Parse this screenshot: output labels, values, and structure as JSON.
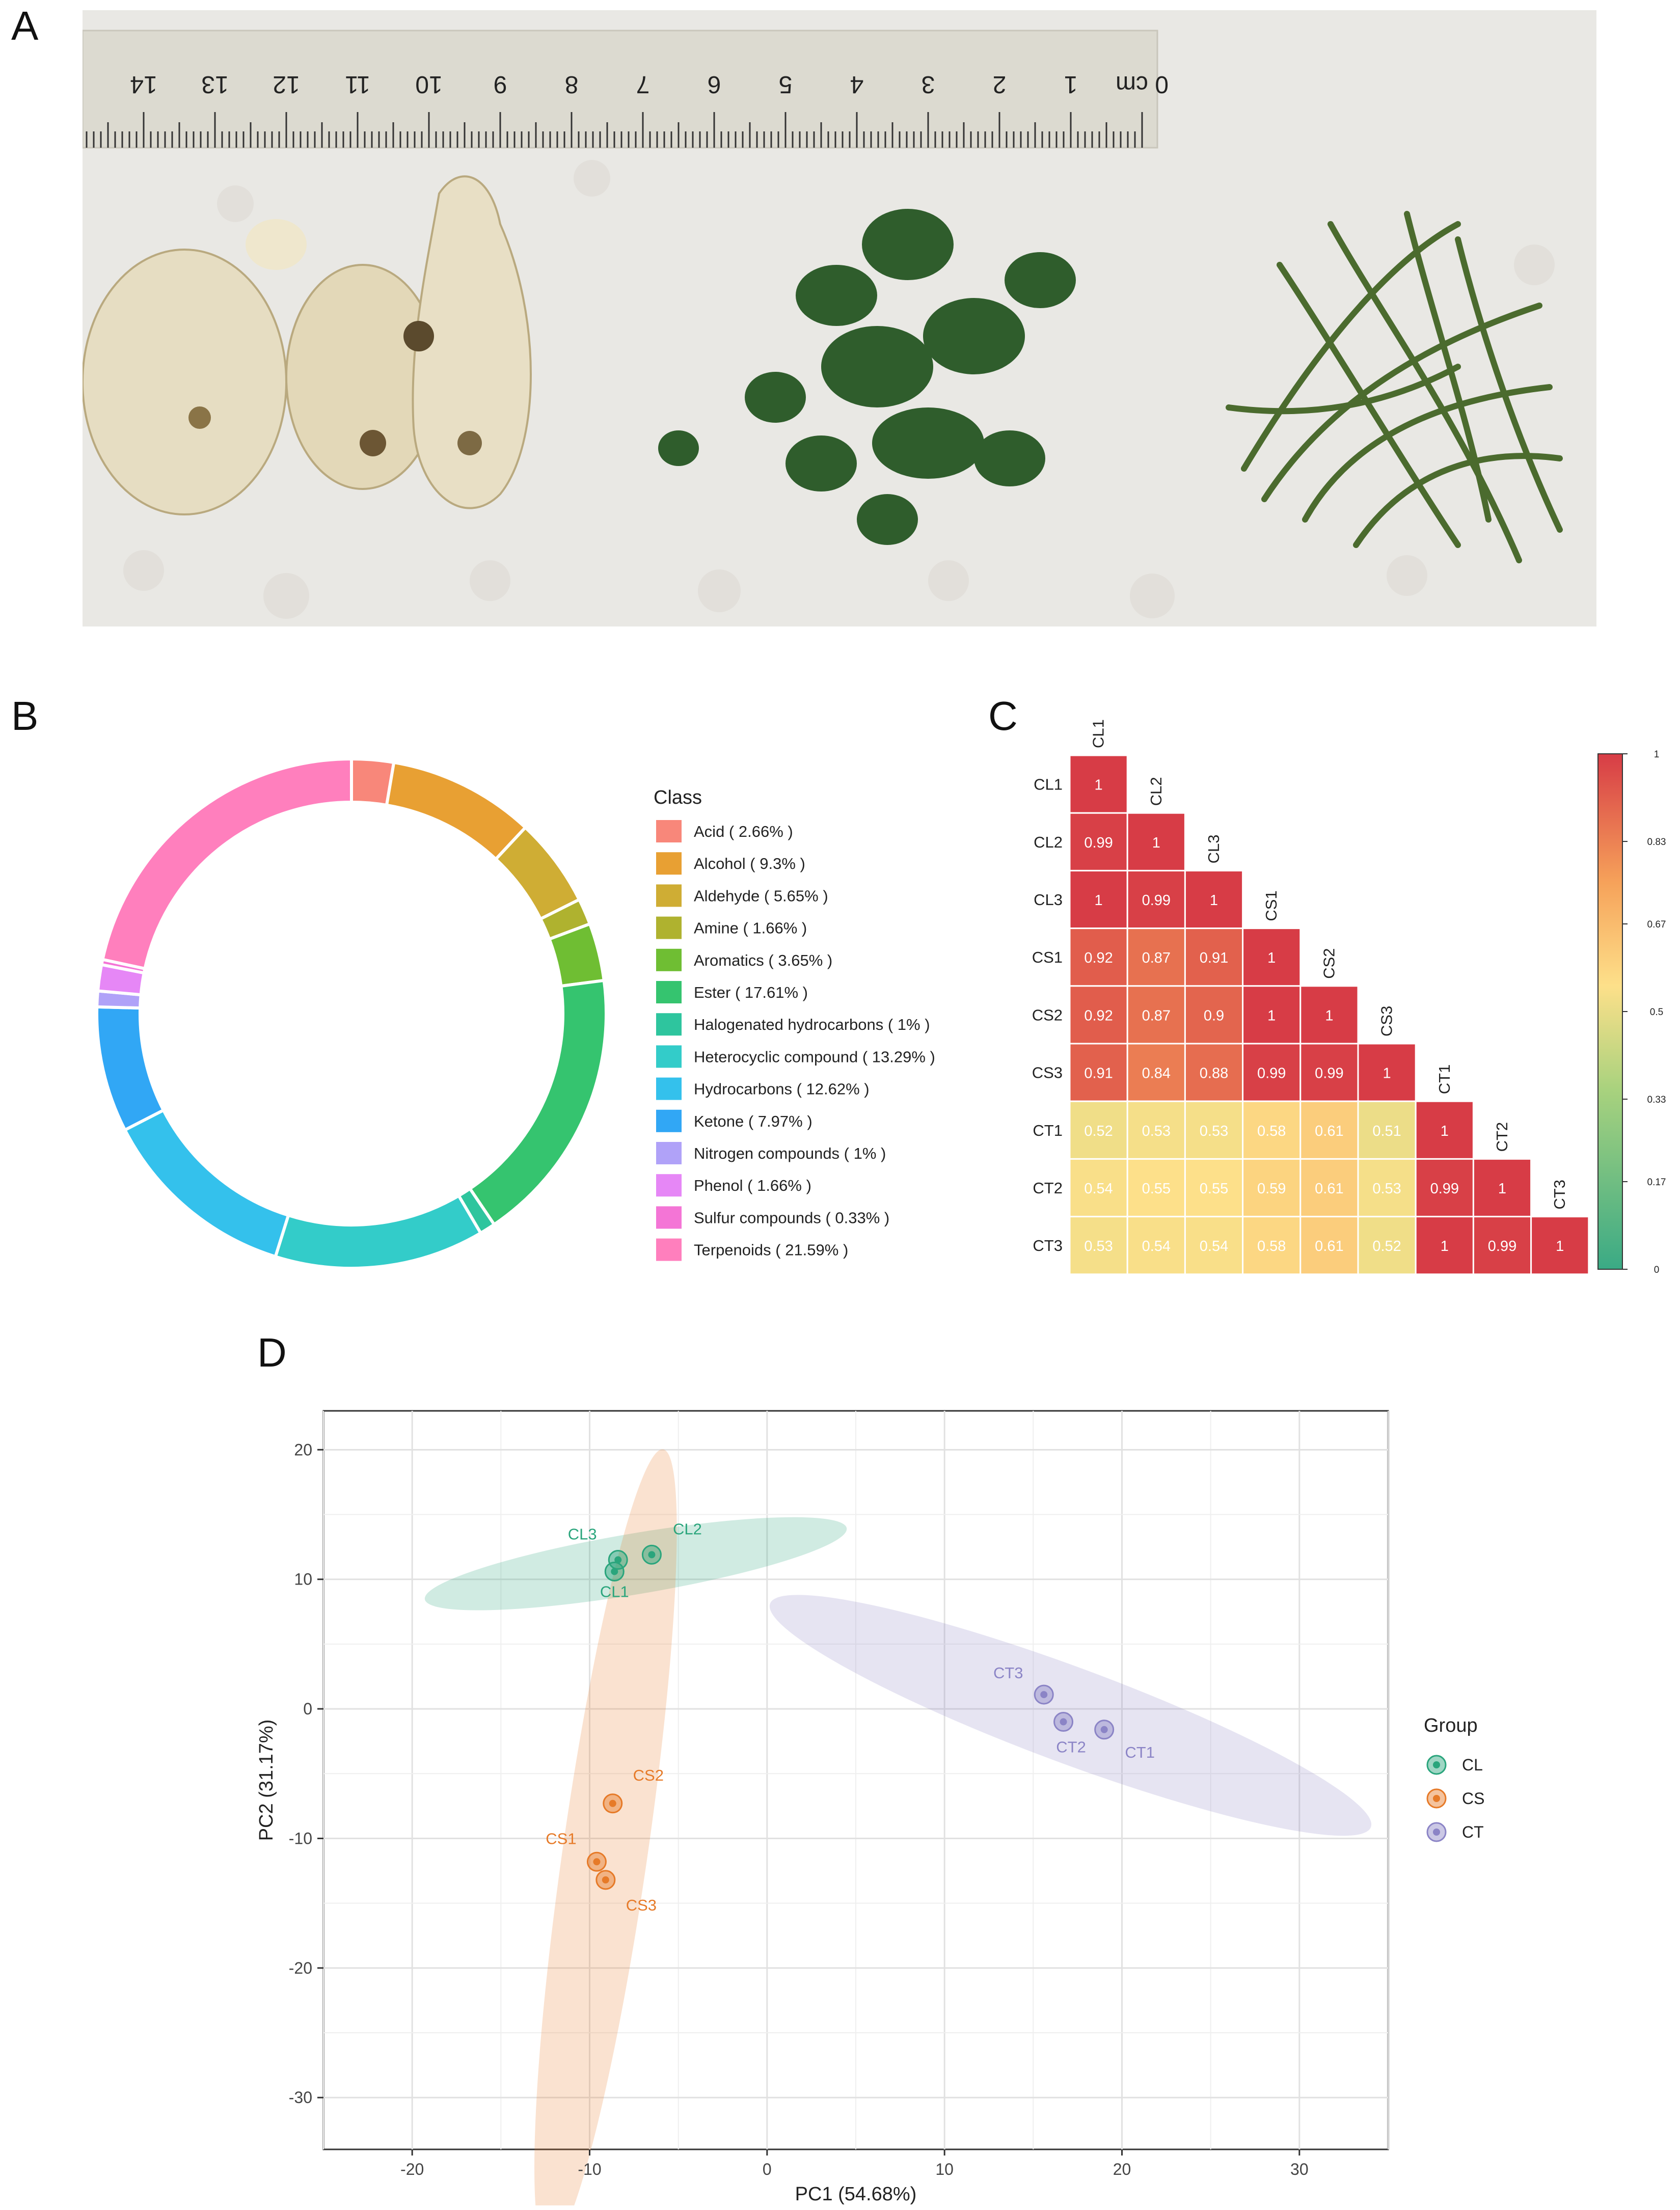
{
  "panels": {
    "a": "A",
    "b": "B",
    "c": "C",
    "d": "D"
  },
  "photo": {
    "ruler_ticks": [
      "0 cm",
      "1",
      "2",
      "3",
      "4",
      "5",
      "6",
      "7",
      "8",
      "9",
      "10",
      "11",
      "12",
      "13",
      "14"
    ],
    "colors": {
      "background": "#e9e8e4",
      "ruler": "#dcdad0",
      "tuber": "#e6ddc2",
      "leaf": "#2f5d2c",
      "stem": "#4b6b2e"
    }
  },
  "chart_data": [
    {
      "type": "pie",
      "variant": "donut",
      "legend_title": "Class",
      "legend_position": "right",
      "categories": [
        "Acid",
        "Alcohol",
        "Aldehyde",
        "Amine",
        "Aromatics",
        "Ester",
        "Halogenated hydrocarbons",
        "Heterocyclic compound",
        "Hydrocarbons",
        "Ketone",
        "Nitrogen compounds",
        "Phenol",
        "Sulfur compounds",
        "Terpenoids"
      ],
      "legend_labels": [
        "Acid ( 2.66% )",
        "Alcohol ( 9.3% )",
        "Aldehyde ( 5.65% )",
        "Amine ( 1.66% )",
        "Aromatics ( 3.65% )",
        "Ester ( 17.61% )",
        "Halogenated hydrocarbons ( 1% )",
        "Heterocyclic compound ( 13.29% )",
        "Hydrocarbons ( 12.62% )",
        "Ketone ( 7.97% )",
        "Nitrogen compounds ( 1% )",
        "Phenol ( 1.66% )",
        "Sulfur compounds ( 0.33% )",
        "Terpenoids ( 21.59% )"
      ],
      "values": [
        2.66,
        9.3,
        5.65,
        1.66,
        3.65,
        17.61,
        1,
        13.29,
        12.62,
        7.97,
        1,
        1.66,
        0.33,
        21.59
      ],
      "colors": [
        "#f8877a",
        "#e8a033",
        "#cfad34",
        "#afb22f",
        "#6fbe33",
        "#35c46f",
        "#2ec59e",
        "#33ccc9",
        "#34c1ec",
        "#31a7f5",
        "#b0a2f8",
        "#e687f6",
        "#f475d6",
        "#ff7fbd"
      ]
    },
    {
      "type": "heatmap",
      "variant": "lower-triangle correlation",
      "labels": [
        "CL1",
        "CL2",
        "CL3",
        "CS1",
        "CS2",
        "CS3",
        "CT1",
        "CT2",
        "CT3"
      ],
      "matrix": [
        [
          1
        ],
        [
          0.99,
          1
        ],
        [
          1,
          0.99,
          1
        ],
        [
          0.92,
          0.87,
          0.91,
          1
        ],
        [
          0.92,
          0.87,
          0.9,
          1,
          1
        ],
        [
          0.91,
          0.84,
          0.88,
          0.99,
          0.99,
          1
        ],
        [
          0.52,
          0.53,
          0.53,
          0.58,
          0.61,
          0.51,
          1
        ],
        [
          0.54,
          0.55,
          0.55,
          0.59,
          0.61,
          0.53,
          0.99,
          1
        ],
        [
          0.53,
          0.54,
          0.54,
          0.58,
          0.61,
          0.52,
          1,
          0.99,
          1
        ]
      ],
      "colorbar_ticks": [
        "1",
        "0.83",
        "0.67",
        "0.5",
        "0.33",
        "0.17",
        "0"
      ],
      "colorbar_range": [
        0,
        1
      ],
      "colors": {
        "high": "#d73c46",
        "mid_high": "#f07048",
        "mid": "#fde08a",
        "low": "#3aaa85"
      }
    },
    {
      "type": "scatter",
      "xlabel": "PC1 (54.68%)",
      "ylabel": "PC2 (31.17%)",
      "xlim": [
        -25,
        35
      ],
      "ylim": [
        -34,
        23
      ],
      "xticks": [
        -20,
        -10,
        0,
        10,
        20,
        30
      ],
      "yticks": [
        -30,
        -20,
        -10,
        0,
        10,
        20
      ],
      "xtick_labels": [
        "-20",
        "-10",
        "0",
        "10",
        "20",
        "30"
      ],
      "ytick_labels": [
        "-30",
        "-20",
        "-10",
        "0",
        "10",
        "20"
      ],
      "grid": true,
      "legend_title": "Group",
      "legend_position": "right",
      "series": [
        {
          "name": "CL",
          "color": "#2aa57c",
          "points": [
            {
              "label": "CL1",
              "x": -8.6,
              "y": 10.6
            },
            {
              "label": "CL2",
              "x": -6.5,
              "y": 11.9
            },
            {
              "label": "CL3",
              "x": -8.4,
              "y": 11.5
            }
          ],
          "ellipse": {
            "cx": -7.4,
            "cy": 11.2,
            "rx": 12.2,
            "ry": 2.3,
            "angle": 13
          }
        },
        {
          "name": "CS",
          "color": "#e67a28",
          "points": [
            {
              "label": "CS1",
              "x": -9.6,
              "y": -11.8
            },
            {
              "label": "CS2",
              "x": -8.7,
              "y": -7.3
            },
            {
              "label": "CS3",
              "x": -9.1,
              "y": -13.2
            }
          ],
          "ellipse": {
            "cx": -9.1,
            "cy": -10.8,
            "rx": 31,
            "ry": 2.4,
            "angle": 84
          }
        },
        {
          "name": "CT",
          "color": "#8b84c6",
          "points": [
            {
              "label": "CT1",
              "x": 19.0,
              "y": -1.6
            },
            {
              "label": "CT2",
              "x": 16.7,
              "y": -1.0
            },
            {
              "label": "CT3",
              "x": 15.6,
              "y": 1.1
            }
          ],
          "ellipse": {
            "cx": 17.1,
            "cy": -0.5,
            "rx": 19,
            "ry": 3.4,
            "angle": -27
          }
        }
      ]
    }
  ]
}
